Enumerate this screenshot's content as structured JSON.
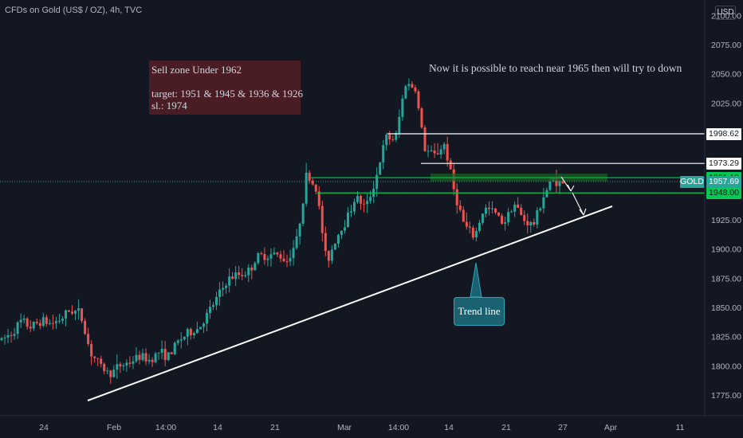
{
  "header": {
    "symbol": "CFDs on Gold (US$ / OZ), 4h, TVC",
    "currency": "USD"
  },
  "annotations": {
    "sell_line1": "Sell zone Under 1962",
    "sell_line2": "target: 1951 & 1945 & 1936 & 1926",
    "sell_line3": "sl.: 1974",
    "note": "Now it is possible to reach near 1965 then will try to down",
    "trend_label": "Trend line"
  },
  "colors": {
    "background": "#131722",
    "up": "#26a69a",
    "down": "#ef5350",
    "level_green": "#00c853",
    "trend": "#ffffff"
  },
  "price_labels": [
    {
      "text": "1998.62",
      "value": 1998.62,
      "bg": "#ffffff",
      "fg": "#131722"
    },
    {
      "text": "1973.29",
      "value": 1973.29,
      "bg": "#ffffff",
      "fg": "#131722"
    },
    {
      "text": "1961.10",
      "value": 1961.1,
      "bg": "#00c853",
      "fg": "#131722"
    },
    {
      "text": "1957.69",
      "value": 1957.69,
      "bg": "#26a69a",
      "fg": "#ffffff",
      "tag": "GOLD"
    },
    {
      "text": "1948.00",
      "value": 1948.0,
      "bg": "#00c853",
      "fg": "#131722"
    }
  ],
  "chart_data": {
    "type": "candlestick",
    "title": "CFDs on Gold (US$ / OZ), 4h, TVC",
    "ylim": [
      1760,
      2100
    ],
    "y_ticks": [
      1775,
      1800,
      1825,
      1850,
      1875,
      1900,
      1925,
      1950,
      1975,
      2000,
      2025,
      2050,
      2075,
      2100
    ],
    "y_tick_labels": [
      "1775.00",
      "1800.00",
      "1825.00",
      "1850.00",
      "1875.00",
      "1900.00",
      "1925.00",
      "1950.00",
      "1975.00",
      "2000.00",
      "2025.00",
      "2050.00",
      "2075.00",
      "2100.00"
    ],
    "x_ticks": [
      "24",
      "Feb",
      "14:00",
      "14",
      "21",
      "Mar",
      "14:00",
      "14",
      "21",
      "27",
      "Apr",
      "11"
    ],
    "anchors": [
      1822,
      1828,
      1838,
      1833,
      1839,
      1836,
      1840,
      1848,
      1845,
      1812,
      1800,
      1793,
      1800,
      1803,
      1808,
      1805,
      1812,
      1808,
      1822,
      1828,
      1832,
      1845,
      1860,
      1874,
      1878,
      1880,
      1893,
      1895,
      1895,
      1890,
      1908,
      1965,
      1950,
      1888,
      1910,
      1925,
      1945,
      1935,
      1960,
      1995,
      1994,
      2042,
      2038,
      1985,
      1980,
      1990,
      1948,
      1920,
      1910,
      1935,
      1932,
      1922,
      1940,
      1925,
      1920,
      1945,
      1960,
      1955
    ],
    "levels": {
      "sell_zone_top": 1961.1,
      "sell_zone_bottom": 1948.0,
      "resistance_1": 1998.62,
      "resistance_2": 1973.29
    },
    "trendline": [
      {
        "date": "Jan 26",
        "price": 1770
      },
      {
        "date": "Mar 29",
        "price": 1935
      }
    ]
  }
}
